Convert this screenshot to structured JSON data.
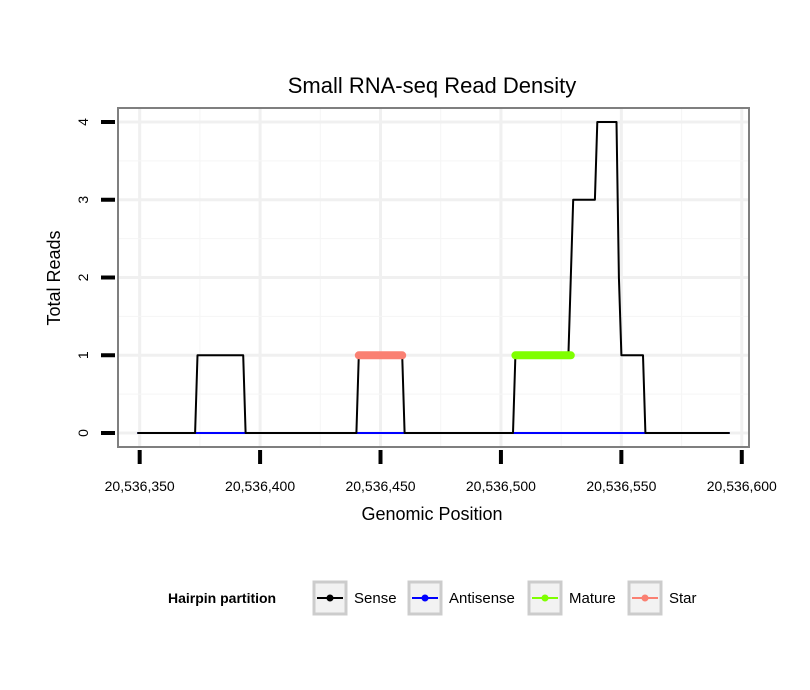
{
  "chart_data": {
    "type": "line",
    "title": "Small RNA-seq Read Density",
    "xlabel": "Genomic Position",
    "ylabel": "Total Reads",
    "xlim": [
      20536341,
      20536603
    ],
    "ylim": [
      -0.18,
      4.18
    ],
    "x_ticks": [
      20536350,
      20536400,
      20536450,
      20536500,
      20536550,
      20536600
    ],
    "x_tick_labels": [
      "20,536,350",
      "20,536,400",
      "20,536,450",
      "20,536,500",
      "20,536,550",
      "20,536,600"
    ],
    "y_ticks": [
      0,
      1,
      2,
      3,
      4
    ],
    "y_tick_labels": [
      "0",
      "1",
      "2",
      "3",
      "4"
    ],
    "grid": true,
    "legend": {
      "title": "Hairpin partition",
      "position": "bottom",
      "entries": [
        "Sense",
        "Antisense",
        "Mature",
        "Star"
      ]
    },
    "series": [
      {
        "name": "Sense",
        "color": "#000000",
        "x": [
          20536349,
          20536373,
          20536374,
          20536393,
          20536394,
          20536440,
          20536441,
          20536459,
          20536460,
          20536505,
          20536506,
          20536528,
          20536529,
          20536530,
          20536539,
          20536540,
          20536548,
          20536549,
          20536550,
          20536559,
          20536560,
          20536565,
          20536595
        ],
        "y": [
          0,
          0,
          1,
          1,
          0,
          0,
          1,
          1,
          0,
          0,
          1,
          1,
          2,
          3,
          3,
          4,
          4,
          2,
          1,
          1,
          0,
          0,
          0
        ]
      },
      {
        "name": "Antisense",
        "color": "#0000ff",
        "x": [
          20536349,
          20536595
        ],
        "y": [
          0,
          0
        ]
      },
      {
        "name": "Mature",
        "color": "#7fff00",
        "x": [
          20536506,
          20536529
        ],
        "y": [
          1,
          1
        ]
      },
      {
        "name": "Star",
        "color": "#fa8072",
        "x": [
          20536441,
          20536459
        ],
        "y": [
          1,
          1
        ]
      }
    ]
  }
}
